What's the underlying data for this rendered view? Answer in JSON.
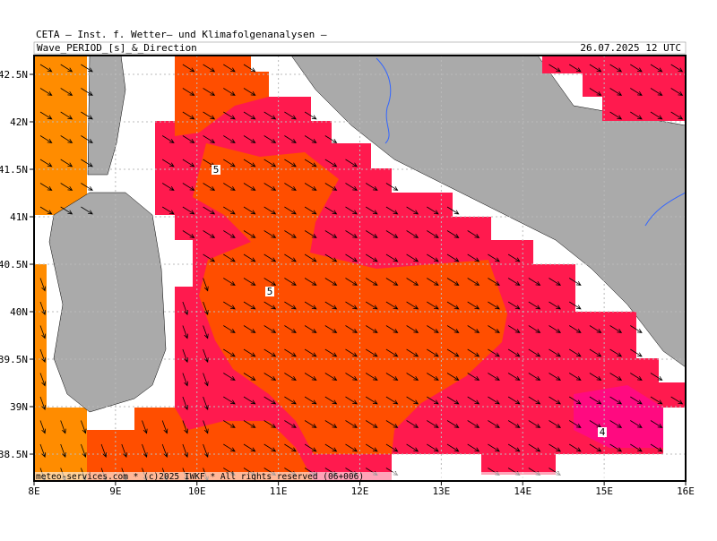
{
  "header": {
    "source": "CETA — Inst. f. Wetter— und Klimafolgenanalysen —",
    "title": "Wave_PERIOD_[s]_&_Direction",
    "date": "26.07.2025 12 UTC"
  },
  "map": {
    "lat_labels": [
      "42.5N",
      "42N",
      "41.5N",
      "41N",
      "40.5N",
      "40N",
      "39.5N",
      "39N",
      "38.5N"
    ],
    "lon_labels": [
      "8E",
      "9E",
      "10E",
      "11E",
      "12E",
      "13E",
      "14E",
      "15E",
      "16E"
    ],
    "contour_labels": [
      "5",
      "5",
      "4"
    ],
    "credit": "meteo-services.com * (c)2025 IWKF * All rights reserved (06+006)"
  }
}
